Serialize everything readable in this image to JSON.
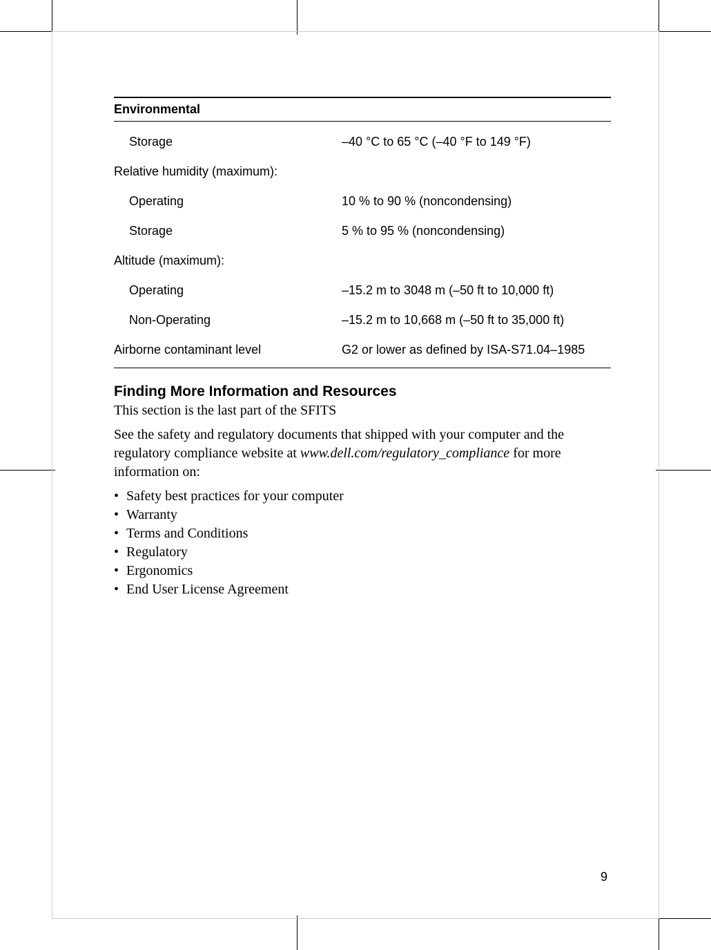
{
  "table": {
    "header": "Environmental",
    "rows": [
      {
        "label": "Storage",
        "value": "–40 °C to 65 °C (–40 °F to 149 °F)",
        "indent": true
      },
      {
        "label": "Relative humidity (maximum):",
        "value": "",
        "indent": false
      },
      {
        "label": "Operating",
        "value": "10 % to 90 % (noncondensing)",
        "indent": true
      },
      {
        "label": "Storage",
        "value": "5 % to 95 % (noncondensing)",
        "indent": true
      },
      {
        "label": "Altitude (maximum):",
        "value": "",
        "indent": false
      },
      {
        "label": "Operating",
        "value": "–15.2 m to 3048 m (–50 ft to 10,000 ft)",
        "indent": true
      },
      {
        "label": "Non-Operating",
        "value": "–15.2 m to 10,668 m (–50 ft to 35,000 ft)",
        "indent": true
      },
      {
        "label": "Airborne contaminant level",
        "value": "G2 or lower as defined by ISA-S71.04–1985",
        "indent": false
      }
    ]
  },
  "section": {
    "heading": "Finding More Information and Resources",
    "intro": "This section is the last part of the SFITS",
    "para_before": "See the safety and regulatory documents that shipped with your computer and the regulatory compliance website at ",
    "link": "www.dell.com/regulatory_compliance",
    "para_after": " for more information on:",
    "bullets": [
      "Safety best practices for your computer",
      "Warranty",
      "Terms and Conditions",
      "Regulatory",
      "Ergonomics",
      "End User License Agreement"
    ]
  },
  "page_number": "9",
  "colors": {
    "text": "#000000",
    "background": "#ffffff"
  },
  "fonts": {
    "sans": "Arial, Helvetica, sans-serif",
    "serif": "Georgia, Times New Roman, serif",
    "table_fontsize": 18,
    "heading_fontsize": 21,
    "body_fontsize": 20
  }
}
